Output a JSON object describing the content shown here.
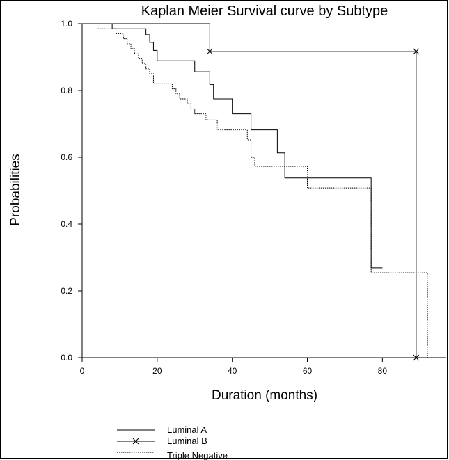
{
  "chart_data": {
    "type": "line",
    "title": "Kaplan Meier Survival curve by Subtype",
    "xlabel": "Duration (months)",
    "ylabel": "Probabilities",
    "xlim": [
      0,
      97
    ],
    "ylim": [
      0,
      1
    ],
    "x_ticks": [
      "0",
      "20",
      "40",
      "60",
      "80"
    ],
    "x_tick_values": [
      0,
      20,
      40,
      60,
      80
    ],
    "y_ticks": [
      "0.0",
      "0.2",
      "0.4",
      "0.6",
      "0.8",
      "1.0"
    ],
    "y_tick_values": [
      0,
      0.2,
      0.4,
      0.6,
      0.8,
      1.0
    ],
    "grid": false,
    "legend_position": "bottom-left",
    "series": [
      {
        "name": "Luminal A",
        "style": "solid",
        "marker": "none",
        "steps": [
          [
            0,
            1.0
          ],
          [
            8,
            0.985
          ],
          [
            17,
            0.967
          ],
          [
            18,
            0.944
          ],
          [
            19,
            0.92
          ],
          [
            20,
            0.889
          ],
          [
            30,
            0.856
          ],
          [
            34,
            0.818
          ],
          [
            35,
            0.775
          ],
          [
            40,
            0.73
          ],
          [
            45,
            0.682
          ],
          [
            52,
            0.613
          ],
          [
            54,
            0.538
          ],
          [
            77,
            0.269
          ],
          [
            80,
            0.269
          ]
        ]
      },
      {
        "name": "Luminal B",
        "style": "solid",
        "marker": "x",
        "steps": [
          [
            0,
            1.0
          ],
          [
            34,
            0.917
          ],
          [
            89,
            0.0
          ]
        ],
        "markers_at": [
          [
            34,
            0.917
          ],
          [
            89,
            0.917
          ],
          [
            89,
            0.0
          ]
        ]
      },
      {
        "name": "Triple Negative",
        "style": "dotted",
        "marker": "none",
        "steps": [
          [
            0,
            1.0
          ],
          [
            4,
            0.985
          ],
          [
            9,
            0.97
          ],
          [
            11,
            0.955
          ],
          [
            12,
            0.94
          ],
          [
            13,
            0.925
          ],
          [
            14,
            0.91
          ],
          [
            15,
            0.895
          ],
          [
            16,
            0.88
          ],
          [
            17,
            0.865
          ],
          [
            18,
            0.85
          ],
          [
            19,
            0.82
          ],
          [
            24,
            0.805
          ],
          [
            25,
            0.79
          ],
          [
            26,
            0.775
          ],
          [
            28,
            0.76
          ],
          [
            29,
            0.745
          ],
          [
            30,
            0.73
          ],
          [
            33,
            0.712
          ],
          [
            36,
            0.682
          ],
          [
            44,
            0.652
          ],
          [
            45,
            0.6
          ],
          [
            46,
            0.573
          ],
          [
            60,
            0.508
          ],
          [
            77,
            0.254
          ],
          [
            92,
            0.0
          ]
        ]
      }
    ]
  }
}
